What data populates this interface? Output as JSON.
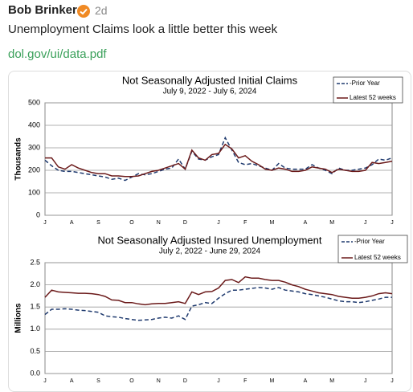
{
  "post": {
    "author": "Bob Brinker",
    "time": "2d",
    "text": "Unemployment Claims look a little better this week",
    "link": "dol.gov/ui/data.pdf"
  },
  "chart_data": [
    {
      "type": "line",
      "title": "Not Seasonally Adjusted Initial Claims",
      "subtitle": "July 9, 2022  -  July 6, 2024",
      "y_label": "Thousands",
      "categories": [
        "J",
        null,
        null,
        null,
        "A",
        null,
        null,
        null,
        "S",
        null,
        null,
        null,
        null,
        "O",
        null,
        null,
        null,
        "N",
        null,
        null,
        null,
        "D",
        null,
        null,
        null,
        null,
        "J",
        null,
        null,
        null,
        "F",
        null,
        null,
        null,
        "M",
        null,
        null,
        null,
        null,
        "A",
        null,
        null,
        null,
        "M",
        null,
        null,
        null,
        null,
        "J",
        null,
        null,
        null,
        "J"
      ],
      "series": [
        {
          "name": "-Prior Year",
          "color": "#1f3a6e",
          "dashed": true,
          "values": [
            245,
            220,
            200,
            195,
            195,
            190,
            185,
            180,
            175,
            170,
            160,
            165,
            155,
            170,
            185,
            180,
            185,
            195,
            205,
            210,
            250,
            205,
            285,
            250,
            245,
            260,
            270,
            345,
            290,
            235,
            225,
            230,
            220,
            210,
            200,
            230,
            210,
            205,
            205,
            205,
            225,
            210,
            200,
            185,
            210,
            200,
            200,
            205,
            210,
            225,
            250,
            245,
            255
          ]
        },
        {
          "name": "Latest 52 weeks",
          "color": "#6b1a1a",
          "dashed": false,
          "values": [
            255,
            255,
            215,
            205,
            225,
            210,
            200,
            190,
            185,
            185,
            175,
            175,
            172,
            172,
            175,
            185,
            195,
            200,
            210,
            220,
            230,
            205,
            290,
            255,
            245,
            270,
            275,
            315,
            295,
            255,
            265,
            240,
            225,
            205,
            200,
            210,
            205,
            195,
            195,
            200,
            215,
            210,
            205,
            190,
            205,
            200,
            195,
            195,
            200,
            235,
            230,
            235,
            240
          ]
        }
      ],
      "ylim": [
        0,
        500
      ],
      "yticks": [
        0,
        100,
        200,
        300,
        400,
        500
      ],
      "grid": true,
      "legend": "top-right"
    },
    {
      "type": "line",
      "title": "Not Seasonally Adjusted Insured Unemployment",
      "subtitle": "July 2, 2022  -  June 29, 2024",
      "y_label": "Millions",
      "categories": [
        "J",
        null,
        null,
        null,
        "A",
        null,
        null,
        null,
        "S",
        null,
        null,
        null,
        null,
        "O",
        null,
        null,
        null,
        "N",
        null,
        null,
        null,
        "D",
        null,
        null,
        null,
        null,
        "J",
        null,
        null,
        null,
        "F",
        null,
        null,
        null,
        "M",
        null,
        null,
        null,
        null,
        "A",
        null,
        null,
        null,
        "M",
        null,
        null,
        null,
        null,
        "J",
        null,
        null,
        null,
        "J"
      ],
      "series": [
        {
          "name": "-Prior Year",
          "color": "#1f3a6e",
          "dashed": true,
          "values": [
            1.33,
            1.45,
            1.45,
            1.46,
            1.45,
            1.43,
            1.42,
            1.4,
            1.38,
            1.3,
            1.28,
            1.27,
            1.24,
            1.22,
            1.2,
            1.21,
            1.22,
            1.25,
            1.27,
            1.25,
            1.3,
            1.22,
            1.52,
            1.55,
            1.6,
            1.58,
            1.7,
            1.8,
            1.88,
            1.88,
            1.9,
            1.92,
            1.94,
            1.93,
            1.9,
            1.94,
            1.88,
            1.86,
            1.84,
            1.8,
            1.78,
            1.75,
            1.72,
            1.68,
            1.64,
            1.62,
            1.62,
            1.6,
            1.62,
            1.65,
            1.68,
            1.72,
            1.72
          ]
        },
        {
          "name": "Latest 52 weeks",
          "color": "#6b1a1a",
          "dashed": false,
          "values": [
            1.72,
            1.88,
            1.84,
            1.83,
            1.82,
            1.81,
            1.81,
            1.8,
            1.78,
            1.74,
            1.66,
            1.65,
            1.6,
            1.6,
            1.57,
            1.55,
            1.57,
            1.58,
            1.58,
            1.6,
            1.62,
            1.58,
            1.84,
            1.78,
            1.84,
            1.85,
            1.93,
            2.1,
            2.12,
            2.05,
            2.18,
            2.15,
            2.15,
            2.12,
            2.1,
            2.1,
            2.06,
            2.0,
            1.96,
            1.9,
            1.86,
            1.82,
            1.8,
            1.78,
            1.74,
            1.72,
            1.7,
            1.7,
            1.72,
            1.75,
            1.8,
            1.82,
            1.8
          ]
        }
      ],
      "ylim": [
        0,
        2.5
      ],
      "yticks": [
        {
          "value": 0,
          "label": "0.0"
        },
        0.5,
        {
          "value": 1,
          "label": "1.0"
        },
        1.5,
        {
          "value": 2,
          "label": "2.0"
        },
        2.5
      ],
      "grid": true,
      "legend": "top-right"
    }
  ]
}
